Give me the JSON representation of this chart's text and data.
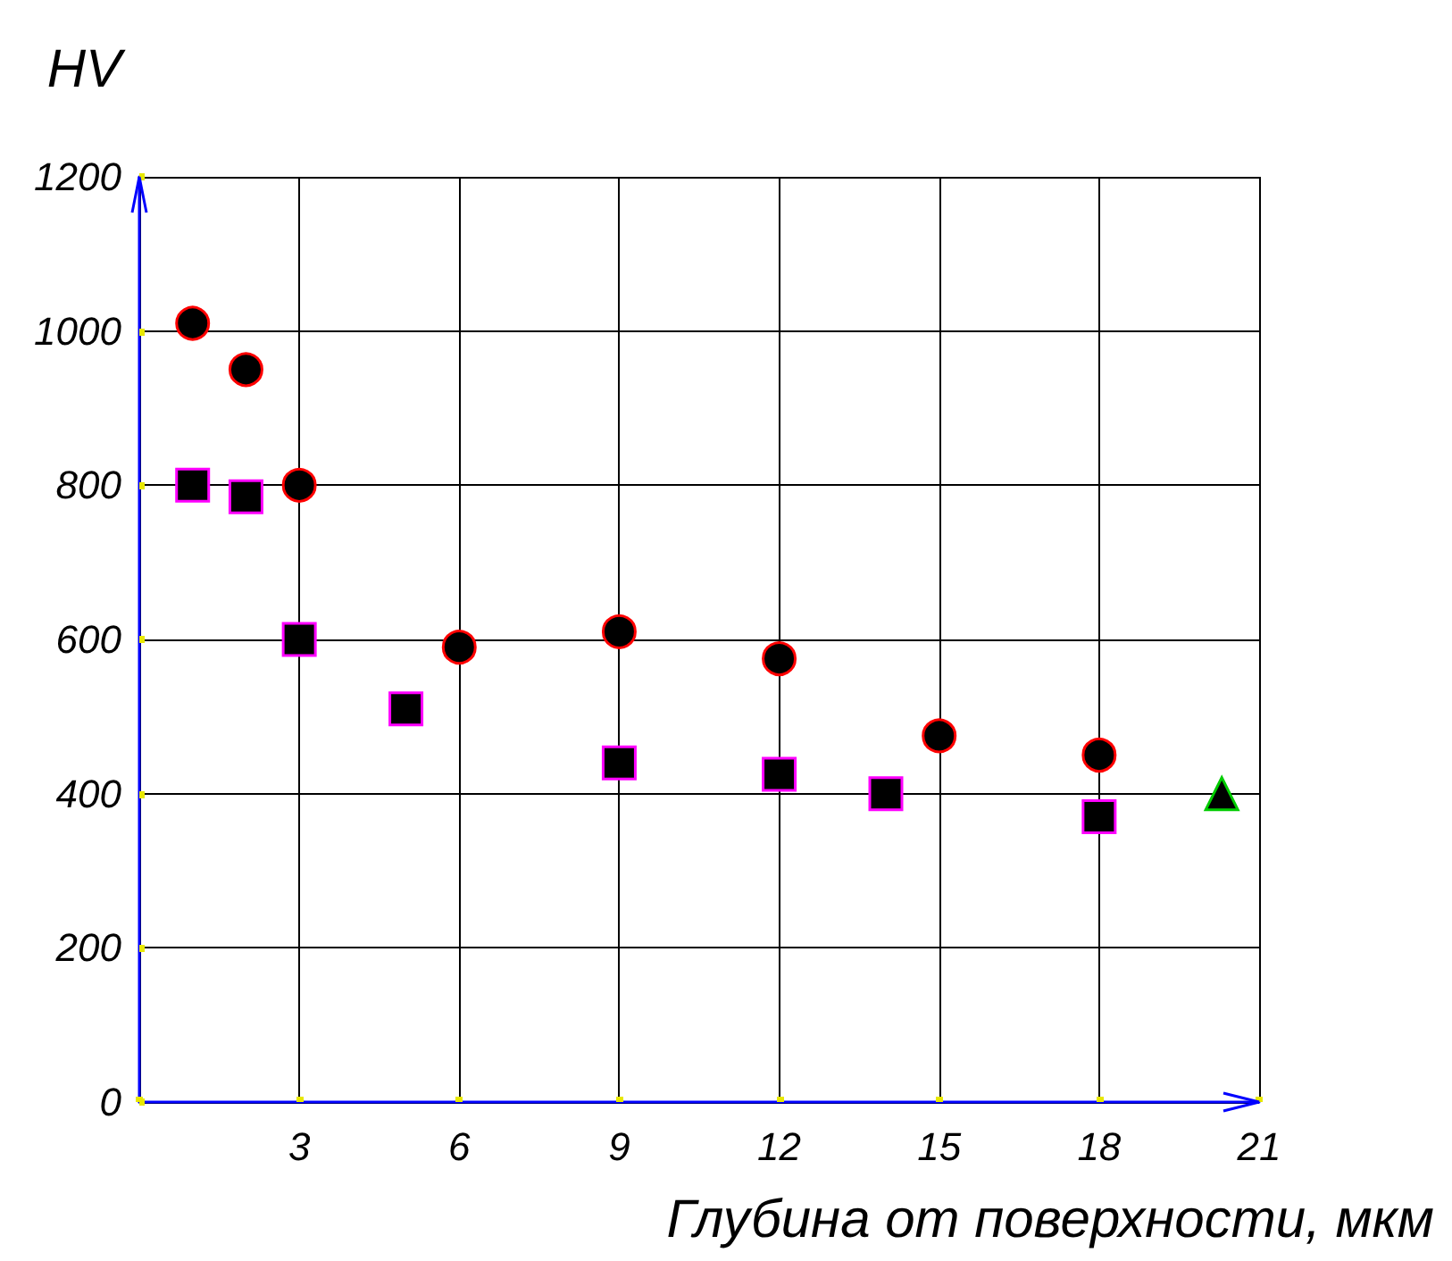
{
  "chart_data": {
    "type": "scatter",
    "xlabel": "Глубина от поверхности, мкм",
    "ylabel": "HV",
    "xlim": [
      0,
      21
    ],
    "xticks": [
      {
        "value": 0,
        "label": null
      },
      3,
      6,
      9,
      12,
      15,
      18,
      21
    ],
    "ylim": [
      0,
      1200
    ],
    "yticks": [
      0,
      200,
      400,
      600,
      800,
      1000,
      1200
    ],
    "grid": true,
    "series": [
      {
        "color": "#000000",
        "marker": "circle",
        "x": [
          1,
          2,
          3,
          6,
          9,
          12,
          15,
          18
        ],
        "values": [
          1010,
          950,
          800,
          590,
          610,
          575,
          475,
          450
        ]
      },
      {
        "color": "#000000",
        "marker": "square",
        "x": [
          1,
          2,
          3,
          5,
          9,
          12,
          14,
          18
        ],
        "values": [
          800,
          785,
          600,
          510,
          440,
          425,
          400,
          370
        ]
      },
      {
        "color": "#000000",
        "marker": "triangle",
        "x": [
          20.3
        ],
        "values": [
          400
        ]
      }
    ]
  }
}
